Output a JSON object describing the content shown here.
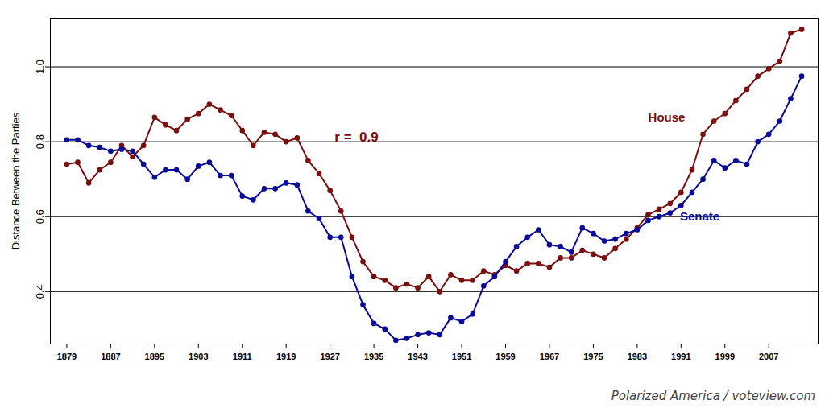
{
  "chart_data": {
    "type": "line",
    "y_label": "Distance Between the Parties",
    "caption": "Polarized America / voteview.com",
    "annotations": [
      {
        "text": "r =  0.9",
        "color": "#7a0f0f"
      }
    ],
    "x": [
      1879,
      1881,
      1883,
      1885,
      1887,
      1889,
      1891,
      1893,
      1895,
      1897,
      1899,
      1901,
      1903,
      1905,
      1907,
      1909,
      1911,
      1913,
      1915,
      1917,
      1919,
      1921,
      1923,
      1925,
      1927,
      1929,
      1931,
      1933,
      1935,
      1937,
      1939,
      1941,
      1943,
      1945,
      1947,
      1949,
      1951,
      1953,
      1955,
      1957,
      1959,
      1961,
      1963,
      1965,
      1967,
      1969,
      1971,
      1973,
      1975,
      1977,
      1979,
      1981,
      1983,
      1985,
      1987,
      1989,
      1991,
      1993,
      1995,
      1997,
      1999,
      2001,
      2003,
      2005,
      2007,
      2009,
      2011,
      2013
    ],
    "series": [
      {
        "name": "House",
        "color": "#7a0f0f",
        "marker": "circle",
        "line_style": "solid",
        "values": [
          0.74,
          0.745,
          0.69,
          0.725,
          0.745,
          0.79,
          0.76,
          0.79,
          0.865,
          0.845,
          0.83,
          0.86,
          0.875,
          0.9,
          0.885,
          0.87,
          0.83,
          0.79,
          0.825,
          0.82,
          0.8,
          0.81,
          0.75,
          0.715,
          0.67,
          0.615,
          0.545,
          0.48,
          0.44,
          0.43,
          0.41,
          0.42,
          0.41,
          0.44,
          0.4,
          0.445,
          0.43,
          0.43,
          0.455,
          0.445,
          0.47,
          0.455,
          0.475,
          0.475,
          0.465,
          0.49,
          0.49,
          0.51,
          0.5,
          0.49,
          0.515,
          0.54,
          0.57,
          0.605,
          0.62,
          0.635,
          0.665,
          0.725,
          0.82,
          0.855,
          0.875,
          0.91,
          0.94,
          0.975,
          0.995,
          1.015,
          1.09,
          1.1
        ]
      },
      {
        "name": "Senate",
        "color": "#0a0a99",
        "marker": "circle",
        "line_style": "solid",
        "values": [
          0.805,
          0.805,
          0.79,
          0.785,
          0.775,
          0.78,
          0.775,
          0.74,
          0.705,
          0.725,
          0.725,
          0.7,
          0.735,
          0.745,
          0.71,
          0.71,
          0.655,
          0.645,
          0.675,
          0.675,
          0.69,
          0.685,
          0.615,
          0.595,
          0.545,
          0.545,
          0.44,
          0.365,
          0.315,
          0.3,
          0.27,
          0.275,
          0.285,
          0.29,
          0.285,
          0.33,
          0.32,
          0.34,
          0.415,
          0.44,
          0.48,
          0.52,
          0.545,
          0.565,
          0.525,
          0.52,
          0.505,
          0.57,
          0.555,
          0.535,
          0.54,
          0.555,
          0.565,
          0.59,
          0.6,
          0.61,
          0.63,
          0.665,
          0.7,
          0.75,
          0.73,
          0.75,
          0.74,
          0.8,
          0.82,
          0.855,
          0.915,
          0.975
        ]
      }
    ],
    "xlim": [
      1876,
      2016
    ],
    "xticks": [
      1879,
      1887,
      1895,
      1903,
      1911,
      1919,
      1927,
      1935,
      1943,
      1951,
      1959,
      1967,
      1975,
      1983,
      1991,
      1999,
      2007
    ],
    "ylim": [
      0.26,
      1.13
    ],
    "yticks": [
      0.4,
      0.6,
      0.8,
      {
        "value": 1,
        "label": "1.0"
      }
    ],
    "grid": true
  }
}
